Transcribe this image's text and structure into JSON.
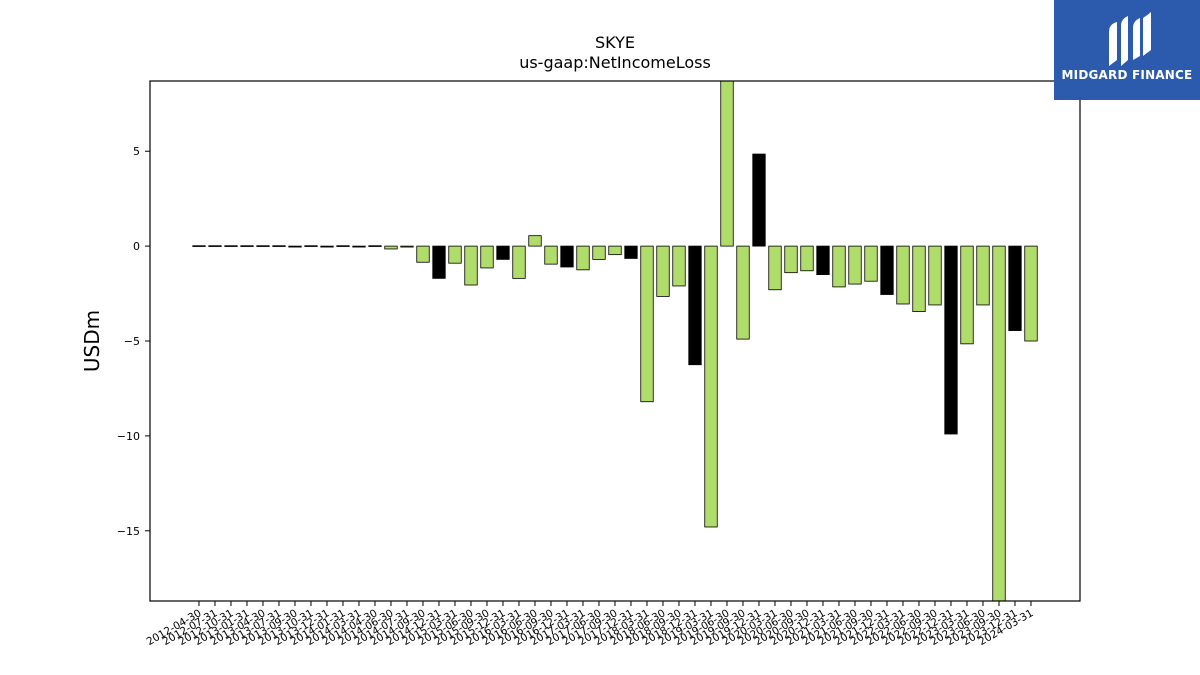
{
  "logo": {
    "text": "MIDGARD FINANCE"
  },
  "chart_data": {
    "type": "bar",
    "title": "SKYE",
    "subtitle": "us-gaap:NetIncomeLoss",
    "xlabel": "",
    "ylabel": "USDm",
    "ylim": [
      -18.7,
      8.7
    ],
    "yticks": [
      5,
      0,
      -5,
      -10,
      -15
    ],
    "ytick_labels": [
      "5",
      "0",
      "−5",
      "−10",
      "−15"
    ],
    "grid": false,
    "legend": "none",
    "colors": {
      "default": "#b0dc6c",
      "highlight": "#000000",
      "edge": "#000000"
    },
    "categories": [
      "2012-04-30",
      "2012-07-31",
      "2012-10-31",
      "2013-01-31",
      "2013-04-30",
      "2013-07-31",
      "2013-09-30",
      "2013-10-31",
      "2013-12-31",
      "2014-01-31",
      "2014-03-31",
      "2014-04-30",
      "2014-06-30",
      "2014-07-31",
      "2014-09-30",
      "2014-12-31",
      "2015-03-31",
      "2015-06-30",
      "2015-09-30",
      "2015-12-31",
      "2016-03-31",
      "2016-06-30",
      "2016-09-30",
      "2016-12-31",
      "2017-03-31",
      "2017-06-30",
      "2017-09-30",
      "2017-12-31",
      "2018-03-31",
      "2018-06-30",
      "2018-09-30",
      "2018-12-31",
      "2019-03-31",
      "2019-06-30",
      "2019-09-30",
      "2019-12-31",
      "2020-03-31",
      "2020-06-30",
      "2020-09-30",
      "2020-12-31",
      "2021-03-31",
      "2021-06-30",
      "2021-09-30",
      "2021-12-31",
      "2022-03-31",
      "2022-06-30",
      "2022-09-30",
      "2022-12-31",
      "2023-03-31",
      "2023-06-30",
      "2023-09-30",
      "2023-12-31",
      "2024-03-31"
    ],
    "values": [
      -0.02,
      -0.02,
      -0.02,
      -0.02,
      -0.02,
      -0.02,
      -0.05,
      -0.02,
      -0.05,
      -0.02,
      -0.05,
      -0.03,
      -0.15,
      -0.05,
      -0.85,
      -1.7,
      -0.9,
      -2.05,
      -1.15,
      -0.7,
      -1.7,
      0.55,
      -0.95,
      -1.1,
      -1.25,
      -0.7,
      -0.45,
      -0.65,
      -8.2,
      -2.65,
      -2.1,
      -6.25,
      -14.8,
      8.8,
      -4.9,
      4.85,
      -2.3,
      -1.4,
      -1.3,
      -1.5,
      -2.15,
      -2.0,
      -1.85,
      -2.55,
      -3.05,
      -3.45,
      -3.1,
      -9.9,
      -5.15,
      -3.1,
      -18.7,
      -4.45,
      -5.0
    ],
    "highlight": [
      false,
      false,
      false,
      false,
      false,
      false,
      true,
      false,
      true,
      false,
      true,
      false,
      false,
      false,
      false,
      true,
      false,
      false,
      false,
      true,
      false,
      false,
      false,
      true,
      false,
      false,
      false,
      true,
      false,
      false,
      false,
      true,
      false,
      false,
      false,
      true,
      false,
      false,
      false,
      true,
      false,
      false,
      false,
      true,
      false,
      false,
      false,
      true,
      false,
      false,
      false,
      true,
      false
    ]
  }
}
